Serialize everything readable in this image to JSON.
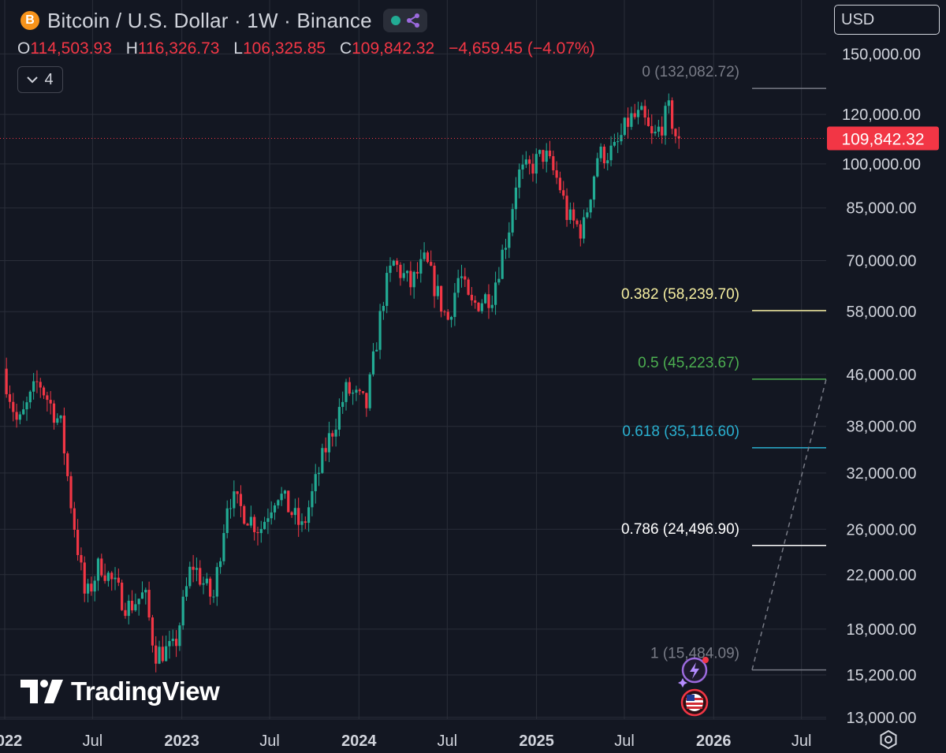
{
  "header": {
    "symbol_icon": "B",
    "title": "Bitcoin / U.S. Dollar · 1W · Binance",
    "ohlc": {
      "o_label": "O",
      "o": "114,503.93",
      "h_label": "H",
      "h": "116,326.73",
      "l_label": "L",
      "l": "106,325.85",
      "c_label": "C",
      "c": "109,842.32",
      "change": "−4,659.45 (−4.07%)"
    },
    "indicator_count": "4",
    "currency": "USD"
  },
  "brand": {
    "name": "TradingView"
  },
  "colors": {
    "up": "#22ab94",
    "down": "#f23645",
    "background": "#131722",
    "grid": "#2a2e39",
    "fib_0": "#787b86",
    "fib_0382": "#f5eea0",
    "fib_05": "#4caf50",
    "fib_0618": "#2ab0d0",
    "fib_0786": "#ffffff",
    "fib_1": "#787b86"
  },
  "chart_data": {
    "type": "candlestick",
    "interval": "1W",
    "scale": "log",
    "ylim": [
      13000,
      160000
    ],
    "y_ticks": [
      "150,000.00",
      "120,000.00",
      "100,000.00",
      "85,000.00",
      "70,000.00",
      "58,000.00",
      "46,000.00",
      "38,000.00",
      "32,000.00",
      "26,000.00",
      "22,000.00",
      "18,000.00",
      "15,200.00",
      "13,000.00"
    ],
    "y_tick_values": [
      150000,
      120000,
      100000,
      85000,
      70000,
      58000,
      46000,
      38000,
      32000,
      26000,
      22000,
      18000,
      15200,
      13000
    ],
    "x_ticks": [
      "2022",
      "Jul",
      "2023",
      "Jul",
      "2024",
      "Jul",
      "2025",
      "Jul",
      "2026",
      "Jul"
    ],
    "x_tick_dates": [
      "2022-01-01",
      "2022-07-01",
      "2023-01-01",
      "2023-07-01",
      "2024-01-01",
      "2024-07-01",
      "2025-01-01",
      "2025-07-01",
      "2026-01-01",
      "2026-07-01"
    ],
    "last_price": 109842.32,
    "last_price_label": "109,842.32",
    "path_points": [
      [
        "2022-01-01",
        47000
      ],
      [
        "2022-02-01",
        38000
      ],
      [
        "2022-03-15",
        45000
      ],
      [
        "2022-05-01",
        38000
      ],
      [
        "2022-05-20",
        29000
      ],
      [
        "2022-06-20",
        20000
      ],
      [
        "2022-07-20",
        23000
      ],
      [
        "2022-09-15",
        19500
      ],
      [
        "2022-10-20",
        20500
      ],
      [
        "2022-11-10",
        16500
      ],
      [
        "2022-12-20",
        16700
      ],
      [
        "2023-01-25",
        23000
      ],
      [
        "2023-03-10",
        20000
      ],
      [
        "2023-04-10",
        29500
      ],
      [
        "2023-06-15",
        26000
      ],
      [
        "2023-07-20",
        30000
      ],
      [
        "2023-09-10",
        26000
      ],
      [
        "2023-10-25",
        34500
      ],
      [
        "2023-12-10",
        43500
      ],
      [
        "2024-01-20",
        41000
      ],
      [
        "2024-02-25",
        62000
      ],
      [
        "2024-03-15",
        69500
      ],
      [
        "2024-04-20",
        64000
      ],
      [
        "2024-05-20",
        70000
      ],
      [
        "2024-07-05",
        56000
      ],
      [
        "2024-07-30",
        67000
      ],
      [
        "2024-08-20",
        59000
      ],
      [
        "2024-10-05",
        62000
      ],
      [
        "2024-11-10",
        80000
      ],
      [
        "2024-11-25",
        96000
      ],
      [
        "2024-12-20",
        98000
      ],
      [
        "2025-01-20",
        104000
      ],
      [
        "2025-02-20",
        93000
      ],
      [
        "2025-03-10",
        82000
      ],
      [
        "2025-04-10",
        78000
      ],
      [
        "2025-05-10",
        103000
      ],
      [
        "2025-06-15",
        105000
      ],
      [
        "2025-07-15",
        118000
      ],
      [
        "2025-08-10",
        119000
      ],
      [
        "2025-09-01",
        109000
      ],
      [
        "2025-09-20",
        116000
      ],
      [
        "2025-10-05",
        122000
      ],
      [
        "2025-10-20",
        109842
      ]
    ],
    "fibonacci": [
      {
        "level": "0",
        "price": 132082.72,
        "label": "0 (132,082.72)"
      },
      {
        "level": "0.382",
        "price": 58239.7,
        "label": "0.382 (58,239.70)"
      },
      {
        "level": "0.5",
        "price": 45223.67,
        "label": "0.5 (45,223.67)"
      },
      {
        "level": "0.618",
        "price": 35116.6,
        "label": "0.618 (35,116.60)"
      },
      {
        "level": "0.786",
        "price": 24496.9,
        "label": "0.786 (24,496.90)"
      },
      {
        "level": "1",
        "price": 15484.09,
        "label": "1 (15,484.09)"
      }
    ]
  }
}
